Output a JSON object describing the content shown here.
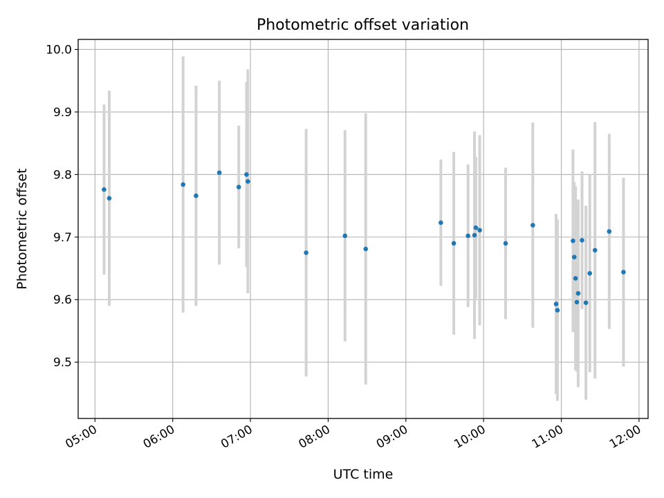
{
  "chart_data": {
    "type": "scatter",
    "title": "Photometric offset variation",
    "xlabel": "UTC time",
    "ylabel": "Photometric offset",
    "xlim": [
      "04:47",
      "12:07"
    ],
    "ylim": [
      9.41,
      10.016
    ],
    "x_ticks": [
      "05:00",
      "06:00",
      "07:00",
      "08:00",
      "09:00",
      "10:00",
      "11:00",
      "12:00"
    ],
    "y_ticks": [
      9.5,
      9.6,
      9.7,
      9.8,
      9.9,
      10.0
    ],
    "y_tick_labels": [
      "9.5",
      "9.6",
      "9.7",
      "9.8",
      "9.9",
      "10.0"
    ],
    "grid": true,
    "marker_color": "#1f77b4",
    "errorbar_color": "#d3d3d3",
    "points": [
      {
        "x": "05:07",
        "y": 9.776,
        "err": 0.136
      },
      {
        "x": "05:11",
        "y": 9.762,
        "err": 0.172
      },
      {
        "x": "06:08",
        "y": 9.784,
        "err": 0.205
      },
      {
        "x": "06:18",
        "y": 9.766,
        "err": 0.176
      },
      {
        "x": "06:36",
        "y": 9.803,
        "err": 0.147
      },
      {
        "x": "06:51",
        "y": 9.78,
        "err": 0.098
      },
      {
        "x": "06:57",
        "y": 9.8,
        "err": 0.148
      },
      {
        "x": "06:58",
        "y": 9.789,
        "err": 0.179
      },
      {
        "x": "07:43",
        "y": 9.675,
        "err": 0.198
      },
      {
        "x": "08:13",
        "y": 9.702,
        "err": 0.169
      },
      {
        "x": "08:29",
        "y": 9.681,
        "err": 0.217
      },
      {
        "x": "09:27",
        "y": 9.723,
        "err": 0.101
      },
      {
        "x": "09:37",
        "y": 9.69,
        "err": 0.146
      },
      {
        "x": "09:48",
        "y": 9.702,
        "err": 0.114
      },
      {
        "x": "09:53",
        "y": 9.703,
        "err": 0.166
      },
      {
        "x": "09:54",
        "y": 9.715,
        "err": 0.113
      },
      {
        "x": "09:57",
        "y": 9.711,
        "err": 0.152
      },
      {
        "x": "10:17",
        "y": 9.69,
        "err": 0.121
      },
      {
        "x": "10:38",
        "y": 9.719,
        "err": 0.164
      },
      {
        "x": "10:56",
        "y": 9.593,
        "err": 0.144
      },
      {
        "x": "10:57",
        "y": 9.583,
        "err": 0.145
      },
      {
        "x": "11:09",
        "y": 9.694,
        "err": 0.146
      },
      {
        "x": "11:10",
        "y": 9.668,
        "err": 0.12
      },
      {
        "x": "11:11",
        "y": 9.634,
        "err": 0.147
      },
      {
        "x": "11:12",
        "y": 9.596,
        "err": 0.111
      },
      {
        "x": "11:13",
        "y": 9.61,
        "err": 0.15
      },
      {
        "x": "11:16",
        "y": 9.695,
        "err": 0.11
      },
      {
        "x": "11:19",
        "y": 9.595,
        "err": 0.155
      },
      {
        "x": "11:22",
        "y": 9.642,
        "err": 0.158
      },
      {
        "x": "11:26",
        "y": 9.679,
        "err": 0.205
      },
      {
        "x": "11:37",
        "y": 9.709,
        "err": 0.156
      },
      {
        "x": "11:48",
        "y": 9.644,
        "err": 0.151
      }
    ]
  }
}
